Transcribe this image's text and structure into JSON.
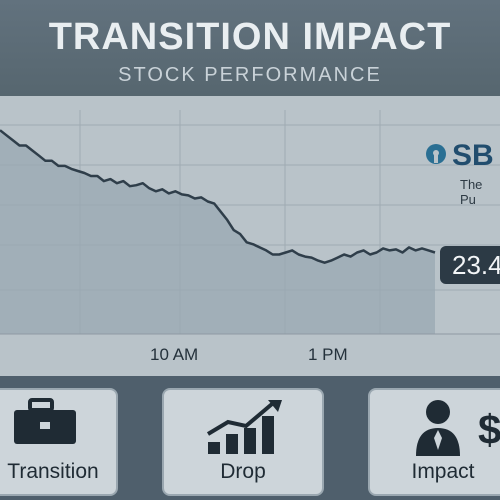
{
  "header": {
    "title": "TRANSITION IMPACT",
    "subtitle": "STOCK PERFORMANCE"
  },
  "logo": {
    "text": "SB",
    "subtext": "The Pu"
  },
  "price_label": "23.4",
  "chart_data": {
    "type": "area",
    "title": "TRANSITION IMPACT",
    "subtitle": "STOCK PERFORMANCE",
    "x_tick_labels": [
      "10 AM",
      "1 PM"
    ],
    "series": [
      {
        "values": [
          24.6,
          24.55,
          24.5,
          24.45,
          24.45,
          24.4,
          24.35,
          24.3,
          24.3,
          24.25,
          24.25,
          24.22,
          24.2,
          24.18,
          24.15,
          24.15,
          24.1,
          24.12,
          24.08,
          24.1,
          24.05,
          24.06,
          24.08,
          24.03,
          24.0,
          24.02,
          23.98,
          24.0,
          23.97,
          23.96,
          23.93,
          23.94,
          23.9,
          23.88,
          23.8,
          23.72,
          23.62,
          23.58,
          23.5,
          23.48,
          23.45,
          23.42,
          23.38,
          23.38,
          23.4,
          23.42,
          23.38,
          23.36,
          23.35,
          23.32,
          23.3,
          23.32,
          23.35,
          23.38,
          23.36,
          23.4,
          23.42,
          23.38,
          23.4,
          23.44,
          23.42,
          23.43,
          23.4,
          23.45,
          23.42,
          23.44,
          23.42,
          23.4
        ]
      }
    ],
    "last_value": 23.4,
    "grid": true
  },
  "cards": [
    {
      "label": "Transition",
      "icon": "briefcase-icon"
    },
    {
      "label": "Drop",
      "icon": "bar-chart-up-icon"
    },
    {
      "label": "Impact",
      "icon": "person-dollar-icon"
    }
  ],
  "colors": {
    "background": "#4f5f6c",
    "chart_panel": "#b9c3c9",
    "line": "#2f3e4a",
    "area": "#9aa8b1",
    "accent": "#2a6f93"
  }
}
